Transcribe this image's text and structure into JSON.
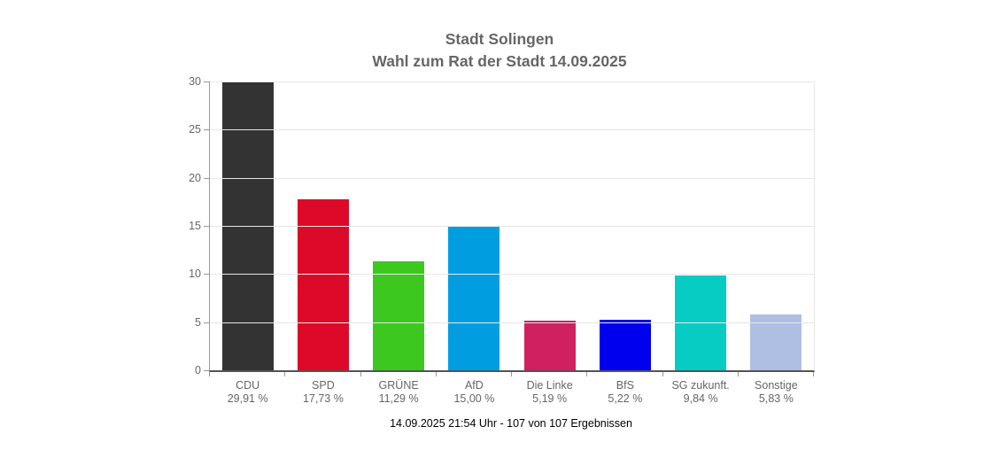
{
  "title": {
    "line1": "Stadt Solingen",
    "line2": "Wahl zum Rat der Stadt 14.09.2025"
  },
  "footer": "14.09.2025 21:54 Uhr - 107 von 107 Ergebnissen",
  "colors": {
    "title_text": "#666666",
    "axis_label_text": "#666666",
    "footer_text": "#000000",
    "gridline": "#e6e6e6",
    "axis_line": "#545454",
    "tick_line": "#999999",
    "background": "#ffffff"
  },
  "chart_data": {
    "type": "bar",
    "title": "Stadt Solingen",
    "subtitle": "Wahl zum Rat der Stadt 14.09.2025",
    "categories": [
      "CDU",
      "SPD",
      "GRÜNE",
      "AfD",
      "Die Linke",
      "BfS",
      "SG zukunft.",
      "Sonstige"
    ],
    "values": [
      29.91,
      17.73,
      11.29,
      15.0,
      5.19,
      5.22,
      9.84,
      5.83
    ],
    "value_labels": [
      "29,91 %",
      "17,73 %",
      "11,29 %",
      "15,00 %",
      "5,19 %",
      "5,22 %",
      "9,84 %",
      "5,83 %"
    ],
    "bar_colors": [
      "#333333",
      "#dc0a28",
      "#3cc81e",
      "#009ee0",
      "#d02060",
      "#0000ee",
      "#06ccc4",
      "#afbfe3"
    ],
    "xlabel": "",
    "ylabel": "",
    "ylim": [
      0,
      30
    ],
    "yticks": [
      0,
      5,
      10,
      15,
      20,
      25,
      30
    ],
    "grid": true,
    "legend": "none"
  }
}
